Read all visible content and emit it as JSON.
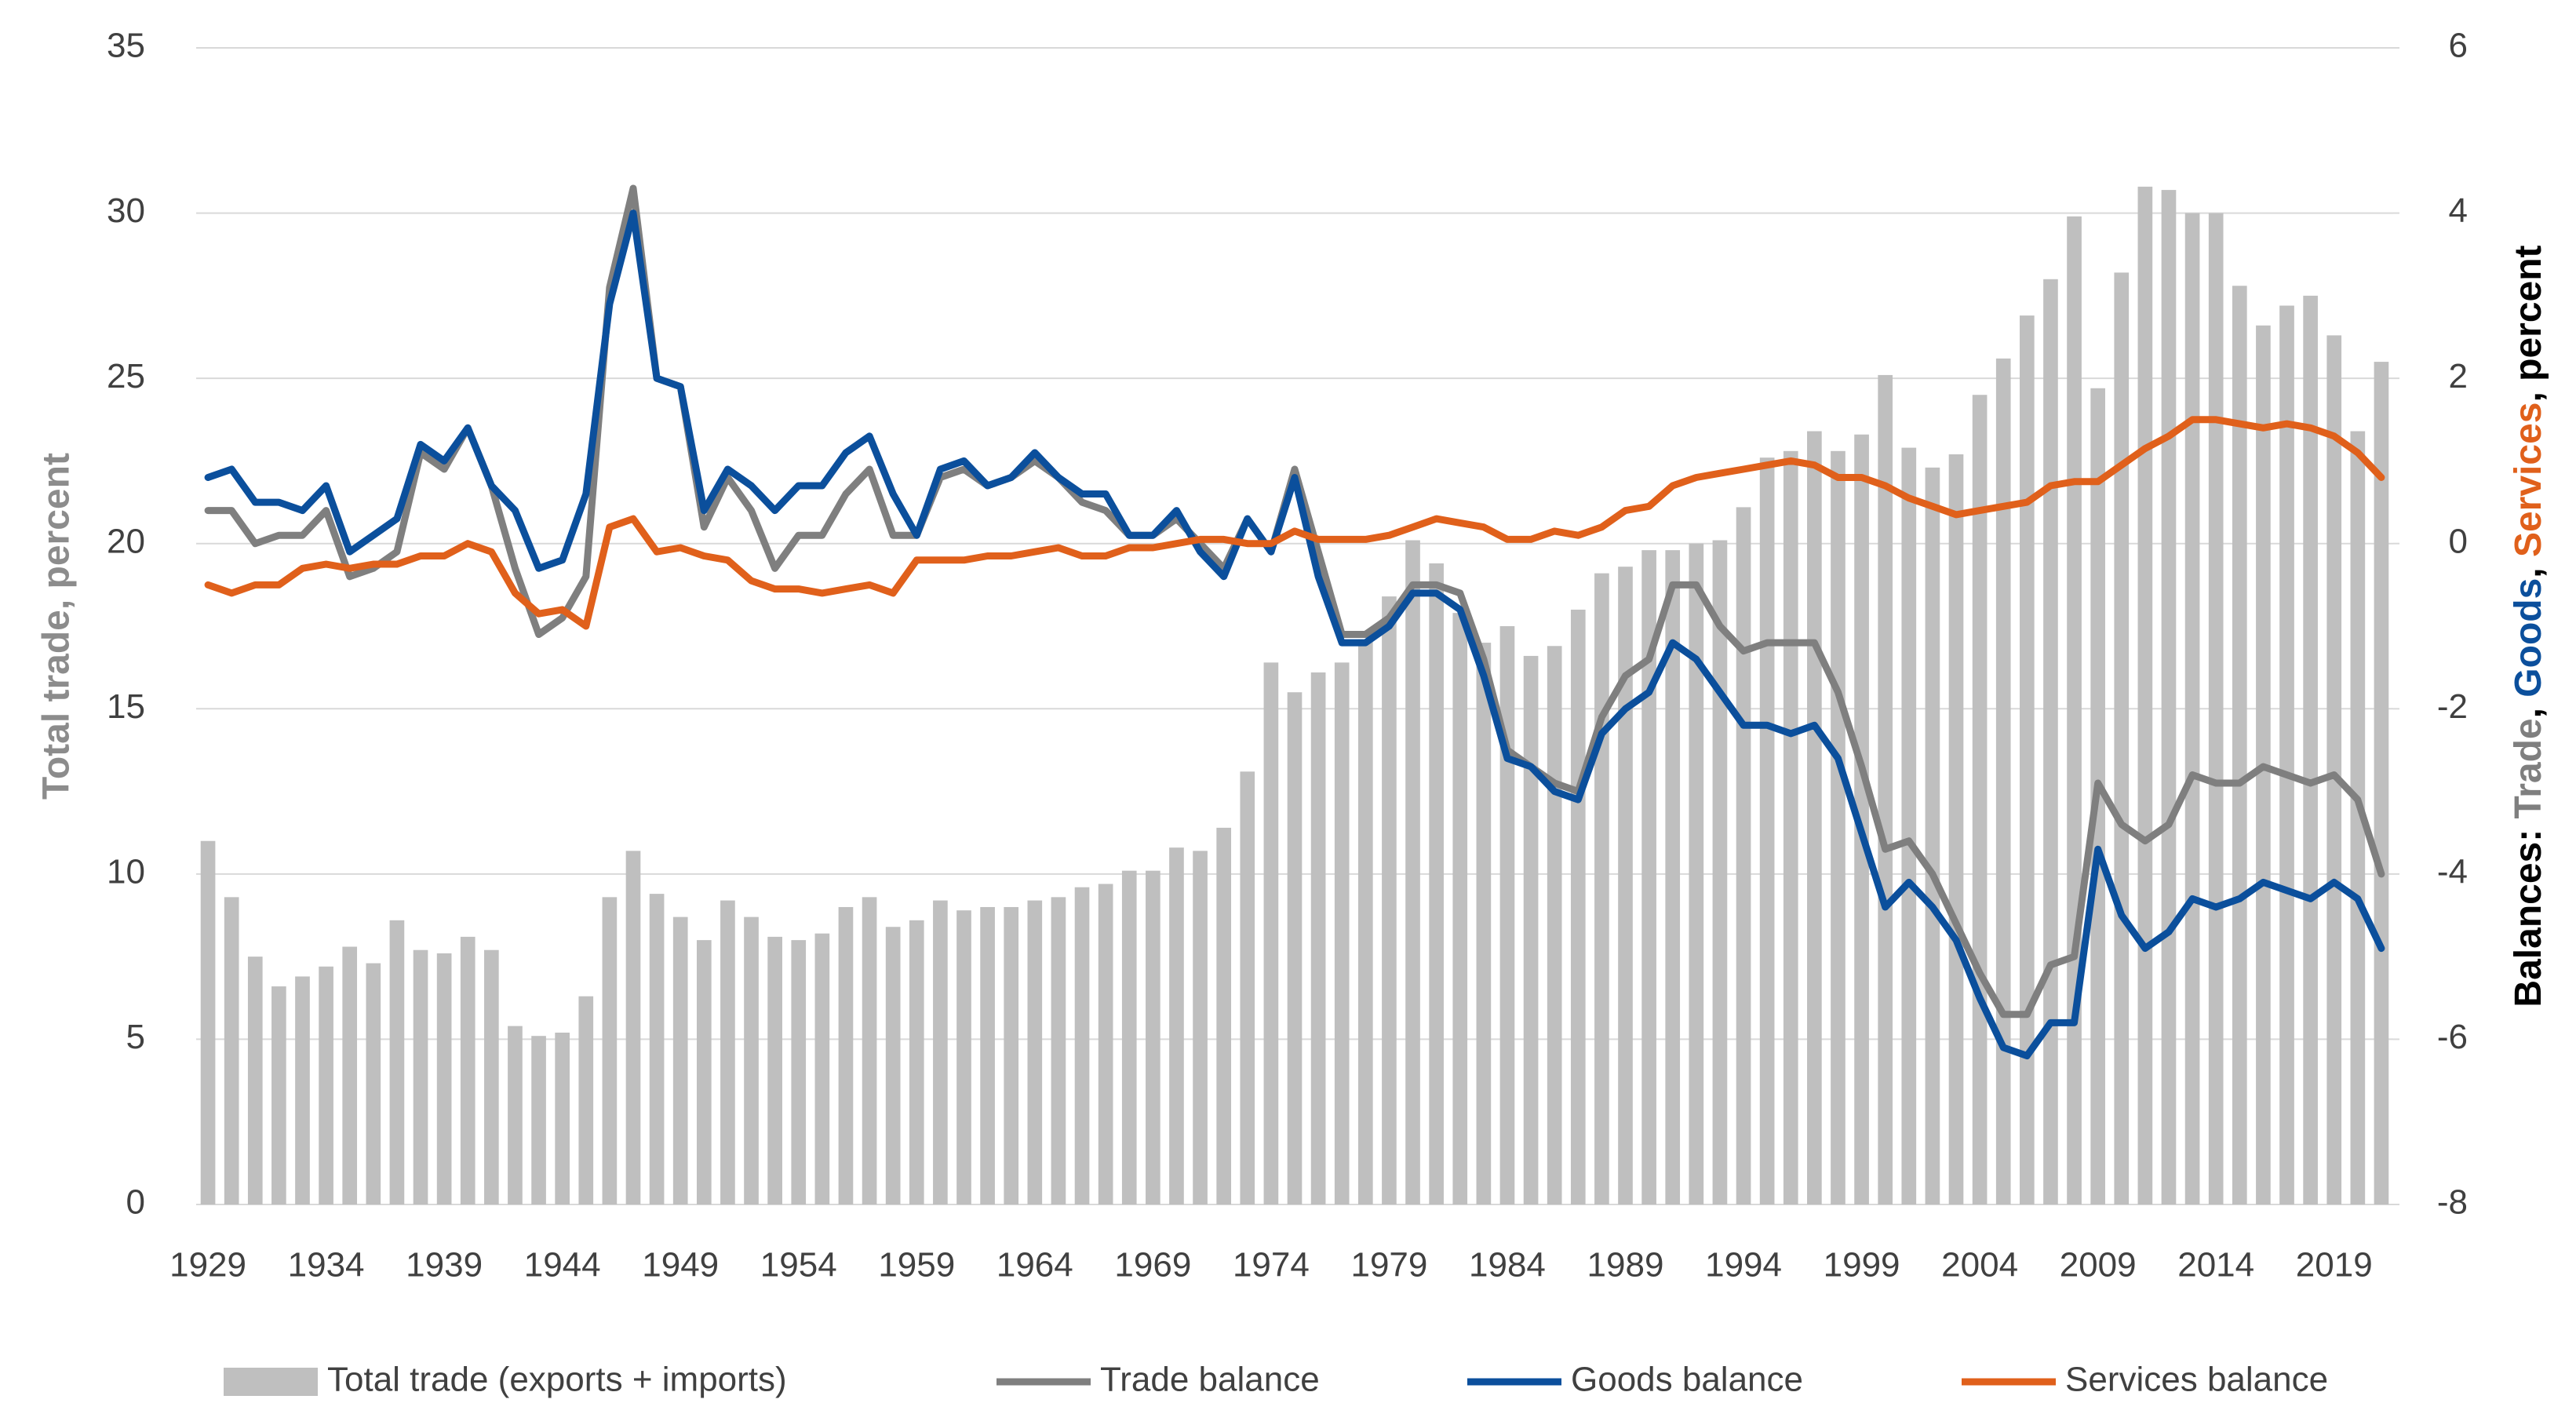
{
  "chart_data": {
    "type": "bar-line",
    "y_label": "Total trade, percent",
    "y2_label_parts": [
      {
        "text": "Balances: ",
        "color": "#000000"
      },
      {
        "text": "Trade",
        "color": "#7f7f7f"
      },
      {
        "text": ", ",
        "color": "#000000"
      },
      {
        "text": "Goods",
        "color": "#0b4f9c"
      },
      {
        "text": ", ",
        "color": "#000000"
      },
      {
        "text": "Services",
        "color": "#e0601b"
      },
      {
        "text": ", percent",
        "color": "#000000"
      }
    ],
    "categories": [
      "1929",
      null,
      null,
      null,
      null,
      "1934",
      null,
      null,
      null,
      null,
      "1939",
      null,
      null,
      null,
      null,
      "1944",
      null,
      null,
      null,
      null,
      "1949",
      null,
      null,
      null,
      null,
      "1954",
      null,
      null,
      null,
      null,
      "1959",
      null,
      null,
      null,
      null,
      "1964",
      null,
      null,
      null,
      null,
      "1969",
      null,
      null,
      null,
      null,
      "1974",
      null,
      null,
      null,
      null,
      "1979",
      null,
      null,
      null,
      null,
      "1984",
      null,
      null,
      null,
      null,
      "1989",
      null,
      null,
      null,
      null,
      "1994",
      null,
      null,
      null,
      null,
      "1999",
      null,
      null,
      null,
      null,
      "2004",
      null,
      null,
      null,
      null,
      "2009",
      null,
      null,
      null,
      null,
      "2014",
      null,
      null,
      null,
      null,
      "2019",
      null,
      null
    ],
    "ylim": [
      0,
      35
    ],
    "yticks": [
      0,
      5,
      10,
      15,
      20,
      25,
      30,
      35
    ],
    "y2lim": [
      -8,
      6
    ],
    "y2ticks": [
      -8,
      -6,
      -4,
      -2,
      0,
      2,
      4,
      6
    ],
    "series": [
      {
        "name": "Total trade (exports + imports)",
        "kind": "bar",
        "color": "#bfbfbf",
        "values": [
          11.0,
          9.3,
          7.5,
          6.6,
          6.9,
          7.2,
          7.8,
          7.3,
          8.6,
          7.7,
          7.6,
          8.1,
          7.7,
          5.4,
          5.1,
          5.2,
          6.3,
          9.3,
          10.7,
          9.4,
          8.7,
          8.0,
          9.2,
          8.7,
          8.1,
          8.0,
          8.2,
          9.0,
          9.3,
          8.4,
          8.6,
          9.2,
          8.9,
          9.0,
          9.0,
          9.2,
          9.3,
          9.6,
          9.7,
          10.1,
          10.1,
          10.8,
          10.7,
          11.4,
          13.1,
          16.4,
          15.5,
          16.1,
          16.4,
          17.1,
          18.4,
          20.1,
          19.4,
          17.9,
          17.0,
          17.5,
          16.6,
          16.9,
          18.0,
          19.1,
          19.3,
          19.8,
          19.8,
          20.0,
          20.1,
          21.1,
          22.6,
          22.8,
          23.4,
          22.8,
          23.3,
          25.1,
          22.9,
          22.3,
          22.7,
          24.5,
          25.6,
          26.9,
          28.0,
          29.9,
          24.7,
          28.2,
          30.8,
          30.7,
          30.0,
          30.0,
          27.8,
          26.6,
          27.2,
          27.5,
          26.3,
          23.4,
          25.5
        ]
      },
      {
        "name": "Trade balance",
        "kind": "line",
        "axis": "y2",
        "color": "#7f7f7f",
        "values": [
          0.4,
          0.4,
          0.0,
          0.1,
          0.1,
          0.4,
          -0.4,
          -0.3,
          -0.1,
          1.1,
          0.9,
          1.4,
          0.7,
          -0.3,
          -1.1,
          -0.9,
          -0.4,
          3.1,
          4.3,
          2.0,
          1.9,
          0.2,
          0.8,
          0.4,
          -0.3,
          0.1,
          0.1,
          0.6,
          0.9,
          0.1,
          0.1,
          0.8,
          0.9,
          0.7,
          0.8,
          1.0,
          0.8,
          0.5,
          0.4,
          0.1,
          0.1,
          0.3,
          0.0,
          -0.3,
          0.3,
          -0.1,
          0.9,
          -0.1,
          -1.1,
          -1.1,
          -0.9,
          -0.5,
          -0.5,
          -0.6,
          -1.4,
          -2.5,
          -2.7,
          -2.9,
          -3.0,
          -2.1,
          -1.6,
          -1.4,
          -0.5,
          -0.5,
          -1.0,
          -1.3,
          -1.2,
          -1.2,
          -1.2,
          -1.8,
          -2.7,
          -3.7,
          -3.6,
          -4.0,
          -4.6,
          -5.2,
          -5.7,
          -5.7,
          -5.1,
          -5.0,
          -2.9,
          -3.4,
          -3.6,
          -3.4,
          -2.8,
          -2.9,
          -2.9,
          -2.7,
          -2.8,
          -2.9,
          -2.8,
          -3.1,
          -4.0
        ]
      },
      {
        "name": "Goods balance",
        "kind": "line",
        "axis": "y2",
        "color": "#0b4f9c",
        "values": [
          0.8,
          0.9,
          0.5,
          0.5,
          0.4,
          0.7,
          -0.1,
          0.1,
          0.3,
          1.2,
          1.0,
          1.4,
          0.7,
          0.4,
          -0.3,
          -0.2,
          0.6,
          2.9,
          4.0,
          2.0,
          1.9,
          0.4,
          0.9,
          0.7,
          0.4,
          0.7,
          0.7,
          1.1,
          1.3,
          0.6,
          0.1,
          0.9,
          1.0,
          0.7,
          0.8,
          1.1,
          0.8,
          0.6,
          0.6,
          0.1,
          0.1,
          0.4,
          -0.1,
          -0.4,
          0.3,
          -0.1,
          0.8,
          -0.4,
          -1.2,
          -1.2,
          -1.0,
          -0.6,
          -0.6,
          -0.8,
          -1.6,
          -2.6,
          -2.7,
          -3.0,
          -3.1,
          -2.3,
          -2.0,
          -1.8,
          -1.2,
          -1.4,
          -1.8,
          -2.2,
          -2.2,
          -2.3,
          -2.2,
          -2.6,
          -3.5,
          -4.4,
          -4.1,
          -4.4,
          -4.8,
          -5.5,
          -6.1,
          -6.2,
          -5.8,
          -5.8,
          -3.7,
          -4.5,
          -4.9,
          -4.7,
          -4.3,
          -4.4,
          -4.3,
          -4.1,
          -4.2,
          -4.3,
          -4.1,
          -4.3,
          -4.9
        ]
      },
      {
        "name": "Services balance",
        "kind": "line",
        "axis": "y2",
        "color": "#e0601b",
        "values": [
          -0.5,
          -0.6,
          -0.5,
          -0.5,
          -0.3,
          -0.25,
          -0.3,
          -0.25,
          -0.25,
          -0.15,
          -0.15,
          0.0,
          -0.1,
          -0.6,
          -0.85,
          -0.8,
          -1.0,
          0.2,
          0.3,
          -0.1,
          -0.05,
          -0.15,
          -0.2,
          -0.45,
          -0.55,
          -0.55,
          -0.6,
          -0.55,
          -0.5,
          -0.6,
          -0.2,
          -0.2,
          -0.2,
          -0.15,
          -0.15,
          -0.1,
          -0.05,
          -0.15,
          -0.15,
          -0.05,
          -0.05,
          0.0,
          0.05,
          0.05,
          0.0,
          0.0,
          0.15,
          0.05,
          0.05,
          0.05,
          0.1,
          0.2,
          0.3,
          0.25,
          0.2,
          0.05,
          0.05,
          0.15,
          0.1,
          0.2,
          0.4,
          0.45,
          0.7,
          0.8,
          0.85,
          0.9,
          0.95,
          1.0,
          0.95,
          0.8,
          0.8,
          0.7,
          0.55,
          0.45,
          0.35,
          0.4,
          0.45,
          0.5,
          0.7,
          0.75,
          0.75,
          0.95,
          1.15,
          1.3,
          1.5,
          1.5,
          1.45,
          1.4,
          1.45,
          1.4,
          1.3,
          1.1,
          0.8
        ]
      }
    ],
    "grid": true
  }
}
